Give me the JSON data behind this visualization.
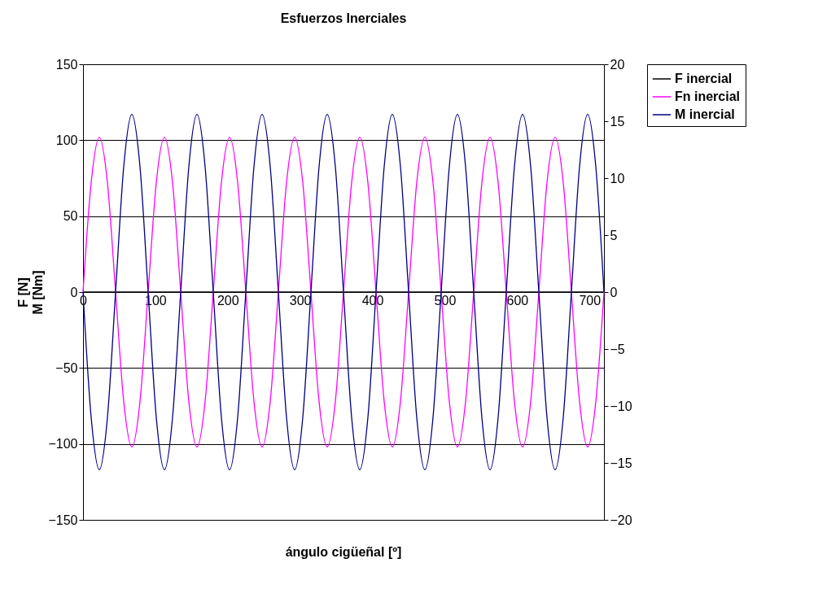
{
  "chart_data": {
    "type": "line",
    "title": "Esfuerzos Inerciales",
    "xlabel": "ángulo cigüeñal [º]",
    "ylabel": "F [N]\nM [Nm]",
    "x": [
      0,
      11.25,
      22.5,
      33.75,
      45,
      56.25,
      67.5,
      78.75,
      90,
      101.25,
      112.5,
      123.75,
      135,
      146.25,
      157.5,
      168.75,
      180,
      191.25,
      202.5,
      213.75,
      225,
      236.25,
      247.5,
      258.75,
      270,
      281.25,
      292.5,
      303.75,
      315,
      326.25,
      337.5,
      348.75,
      360,
      371.25,
      382.5,
      393.75,
      405,
      416.25,
      427.5,
      438.75,
      450,
      461.25,
      472.5,
      483.75,
      495,
      506.25,
      517.5,
      528.75,
      540,
      551.25,
      562.5,
      573.75,
      585,
      596.25,
      607.5,
      618.75,
      630,
      641.25,
      652.5,
      663.75,
      675,
      686.25,
      697.5,
      708.75,
      720
    ],
    "series": [
      {
        "name": "F inercial",
        "color": "#000000",
        "x": [
          0,
          720
        ],
        "values": [
          0,
          0
        ]
      },
      {
        "name": "Fn inercial",
        "color": "#ff00ff",
        "values": [
          0,
          72,
          102,
          72,
          0,
          -72,
          -102,
          -72,
          0,
          72,
          102,
          72,
          0,
          -72,
          -102,
          -72,
          0,
          72,
          102,
          72,
          0,
          -72,
          -102,
          -72,
          0,
          72,
          102,
          72,
          0,
          -72,
          -102,
          -72,
          0,
          72,
          102,
          72,
          0,
          -72,
          -102,
          -72,
          0,
          72,
          102,
          72,
          0,
          -72,
          -102,
          -72,
          0,
          72,
          102,
          72,
          0,
          -72,
          -102,
          -72,
          0,
          72,
          102,
          72,
          0,
          -72,
          -102,
          -72,
          0
        ]
      },
      {
        "name": "M inercial",
        "color": "#000080",
        "axis": "y2",
        "values": [
          0,
          -11,
          -15.6,
          -11,
          0,
          11,
          15.6,
          11,
          0,
          -11,
          -15.6,
          -11,
          0,
          11,
          15.6,
          11,
          0,
          -11,
          -15.6,
          -11,
          0,
          11,
          15.6,
          11,
          0,
          -11,
          -15.6,
          -11,
          0,
          11,
          15.6,
          11,
          0,
          -11,
          -15.6,
          -11,
          0,
          11,
          15.6,
          11,
          0,
          -11,
          -15.6,
          -11,
          0,
          11,
          15.6,
          11,
          0,
          -11,
          -15.6,
          -11,
          0,
          11,
          15.6,
          11,
          0,
          -11,
          -15.6,
          -11,
          0,
          11,
          15.6,
          11,
          0
        ]
      }
    ],
    "xlim": [
      0,
      720
    ],
    "xticks": [
      0,
      100,
      200,
      300,
      400,
      500,
      600,
      700
    ],
    "ylim": [
      -150,
      150
    ],
    "yticks": [
      -150,
      -100,
      -50,
      0,
      50,
      100,
      150
    ],
    "y2lim": [
      -20,
      20
    ],
    "y2ticks": [
      -20,
      -15,
      -10,
      -5,
      0,
      5,
      10,
      15,
      20
    ],
    "grid": "y",
    "legend": "right",
    "line_style": "solid",
    "marker": "none"
  }
}
